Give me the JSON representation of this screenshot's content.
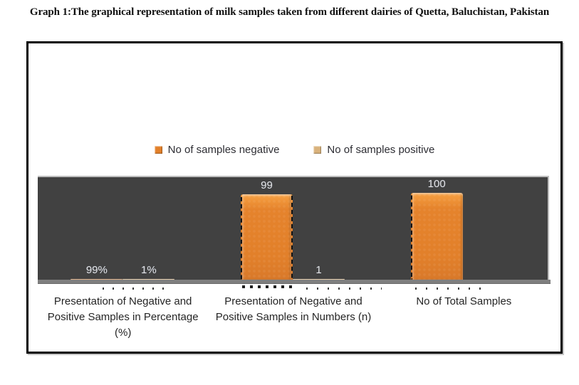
{
  "page": {
    "title": "Graph 1:The graphical representation of milk samples taken from different dairies of Quetta, Baluchistan, Pakistan"
  },
  "legend": {
    "items": [
      {
        "label": "No of samples negative",
        "color": "#e2802a"
      },
      {
        "label": "No of samples positive",
        "color": "#d9b27c"
      }
    ]
  },
  "chart_data": {
    "type": "bar",
    "title": "Graph 1:The graphical representation of milk samples taken from different dairies of Quetta, Baluchistan, Pakistan",
    "categories": [
      "Presentation of Negative and Positive Samples in Percentage (%)",
      "Presentation of Negative and Positive Samples in Numbers (n)",
      "No of Total Samples"
    ],
    "series": [
      {
        "name": "No of samples negative",
        "color": "#e2802a",
        "values": [
          0.99,
          99,
          100
        ],
        "labels": [
          "99%",
          "99",
          "100"
        ],
        "dashes": [
          "none",
          "both",
          "left"
        ]
      },
      {
        "name": "No of samples positive",
        "color": "#d9b27c",
        "values": [
          0.01,
          1,
          null
        ],
        "labels": [
          "1%",
          "1",
          ""
        ],
        "dashes": [
          "none",
          "none",
          "none"
        ]
      }
    ],
    "ylim": [
      0,
      120
    ],
    "grid": false,
    "legend_position": "top",
    "plot_background": "#414141",
    "floor_color": "#7f7f7f",
    "data_label_color": "#e4e4e6"
  }
}
